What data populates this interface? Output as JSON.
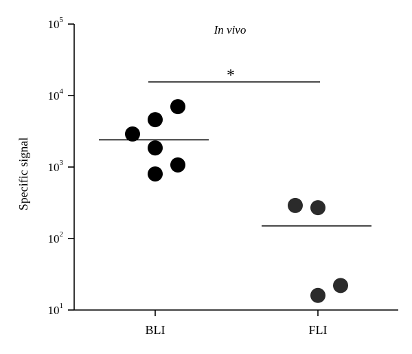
{
  "chart_data": {
    "type": "scatter",
    "title": "",
    "annotation": "In vivo",
    "ylabel": "Specific signal",
    "xlabel": "",
    "yscale": "log",
    "ylim": [
      10,
      100000
    ],
    "yticks": [
      {
        "base": "10",
        "exp": "1"
      },
      {
        "base": "10",
        "exp": "2"
      },
      {
        "base": "10",
        "exp": "3"
      },
      {
        "base": "10",
        "exp": "4"
      },
      {
        "base": "10",
        "exp": "5"
      }
    ],
    "categories": [
      "BLI",
      "FLI"
    ],
    "groups": [
      {
        "category": "BLI",
        "color": "#000000",
        "points": [
          {
            "offset": -0.6,
            "value": 2900
          },
          {
            "offset": 0,
            "value": 4600
          },
          {
            "offset": 0,
            "value": 1850
          },
          {
            "offset": 0,
            "value": 800
          },
          {
            "offset": 0.6,
            "value": 7000
          },
          {
            "offset": 0.6,
            "value": 1070
          }
        ],
        "median": 2400
      },
      {
        "category": "FLI",
        "color": "#2b2b2b",
        "points": [
          {
            "offset": -0.6,
            "value": 290
          },
          {
            "offset": 0,
            "value": 270
          },
          {
            "offset": 0,
            "value": 16
          },
          {
            "offset": 0.6,
            "value": 22
          }
        ],
        "median": 150
      }
    ],
    "significance": {
      "between": [
        "BLI",
        "FLI"
      ],
      "label": "*",
      "value": 15500
    }
  }
}
